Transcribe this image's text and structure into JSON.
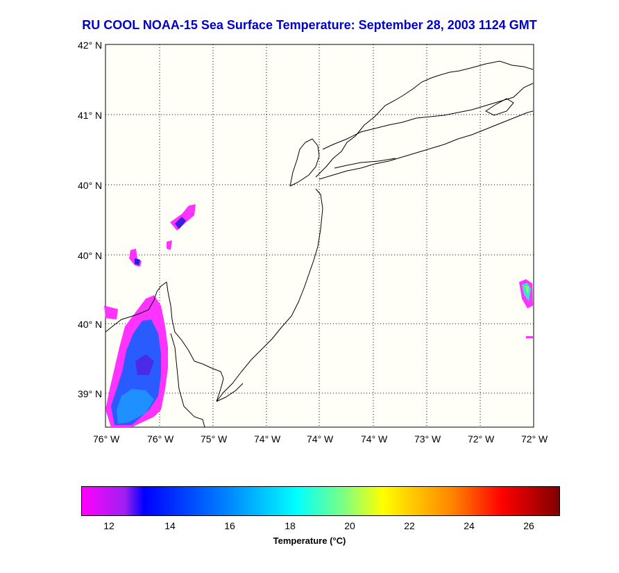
{
  "title": "RU COOL  NOAA-15  Sea Surface Temperature:  September 28, 2003 1124 GMT",
  "map": {
    "lat_labels": [
      "42° N",
      "41° N",
      "40° N",
      "40° N",
      "40° N",
      "39° N"
    ],
    "lon_labels": [
      "76° W",
      "76° W",
      "75° W",
      "74° W",
      "74° W",
      "74° W",
      "73° W",
      "72° W",
      "72° W"
    ],
    "background_color": "#fffff8",
    "grid": "dotted"
  },
  "colorbar": {
    "ticks": [
      "12",
      "14",
      "16",
      "18",
      "20",
      "22",
      "24",
      "26"
    ],
    "label": "Temperature (°C)",
    "range": [
      11,
      27
    ],
    "colors": [
      "#ff00ff",
      "#0000ff",
      "#0080ff",
      "#00ffff",
      "#80ff80",
      "#ffff00",
      "#ff8000",
      "#ff0000",
      "#800000"
    ]
  }
}
